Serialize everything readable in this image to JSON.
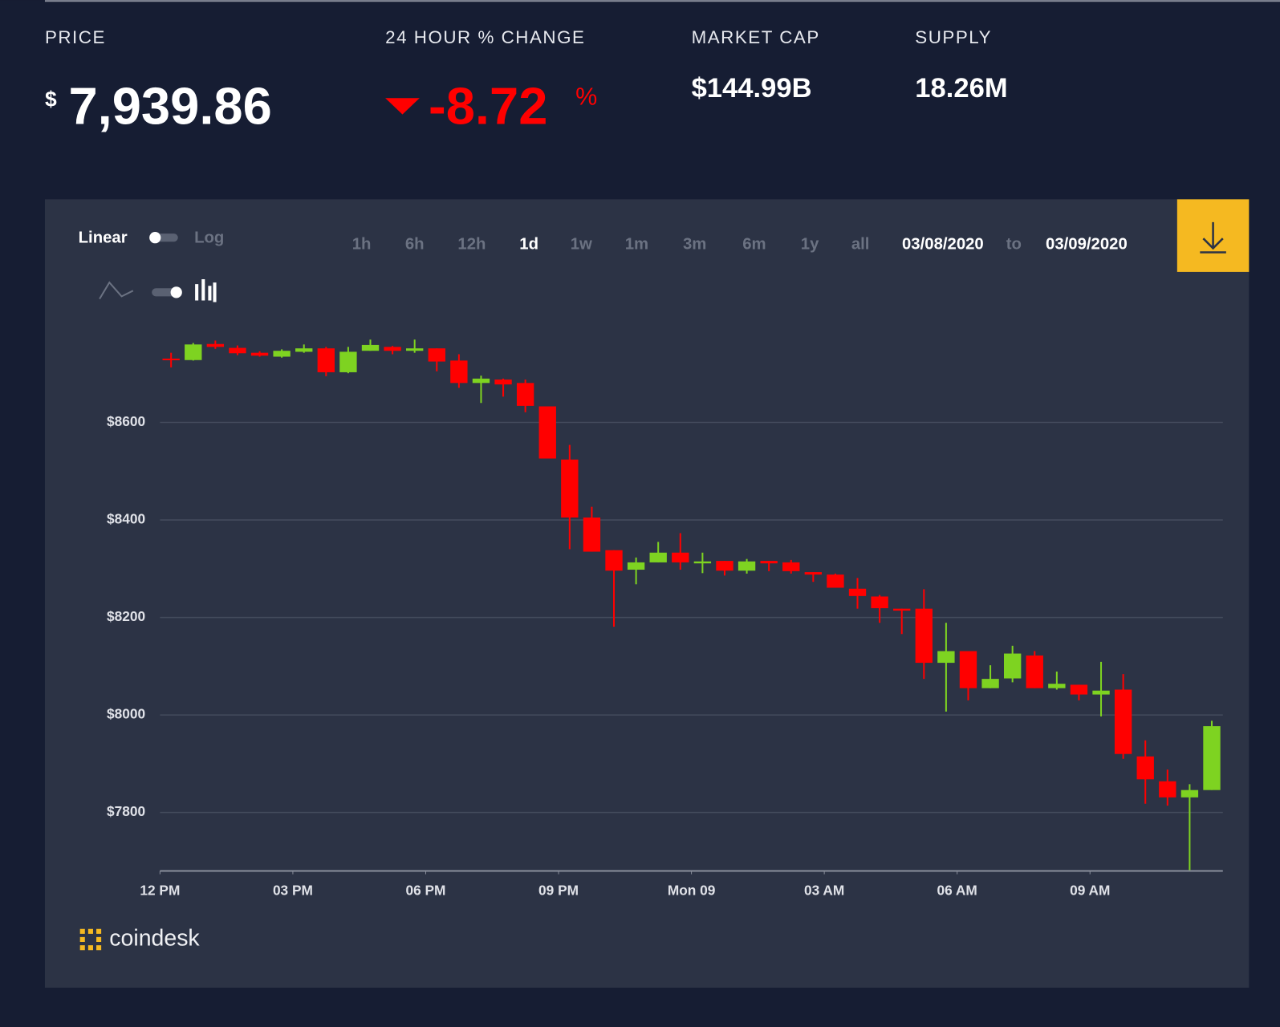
{
  "price": {
    "label": "PRICE",
    "currency": "$",
    "value": "7,939.86"
  },
  "change": {
    "label": "24 HOUR % CHANGE",
    "value": "-8.72",
    "unit": "%"
  },
  "market_cap": {
    "label": "MARKET CAP",
    "value": "$144.99B"
  },
  "supply": {
    "label": "SUPPLY",
    "value": "18.26M"
  },
  "controls": {
    "scale_options": [
      "Linear",
      "Log"
    ],
    "ranges": [
      "1h",
      "6h",
      "12h",
      "1d",
      "1w",
      "1m",
      "3m",
      "6m",
      "1y",
      "all"
    ],
    "selected_range_index": 3,
    "date_from": "03/08/2020",
    "date_sep": "to",
    "date_to": "03/09/2020"
  },
  "brand": "coindesk",
  "chart_data": {
    "type": "candlestick",
    "x": [
      0.25,
      0.75,
      1.25,
      1.75,
      2.25,
      2.75,
      3.25,
      3.75,
      4.25,
      4.75,
      5.25,
      5.75,
      6.25,
      6.75,
      7.25,
      7.75,
      8.25,
      8.75,
      9.25,
      9.75,
      10.25,
      10.75,
      11.25,
      11.75,
      12.25,
      12.75,
      13.25,
      13.75,
      14.25,
      14.75,
      15.25,
      15.75,
      16.25,
      16.75,
      17.25,
      17.75,
      18.25,
      18.75,
      19.25,
      19.75,
      20.25,
      20.75,
      21.25,
      21.75,
      22.25,
      22.75,
      23.25,
      23.75
    ],
    "open": [
      8731,
      8728,
      8761,
      8753,
      8743,
      8735,
      8745,
      8752,
      8703,
      8747,
      8755,
      8747,
      8752,
      8727,
      8681,
      8688,
      8681,
      8633,
      8524,
      8405,
      8338,
      8298,
      8313,
      8333,
      8311,
      8316,
      8296,
      8316,
      8313,
      8293,
      8288,
      8259,
      8243,
      8218,
      8218,
      8107,
      8131,
      8055,
      8075,
      8122,
      8055,
      8062,
      8042,
      8052,
      7915,
      7864,
      7831,
      7846
    ],
    "high": [
      8743,
      8763,
      8768,
      8758,
      8746,
      8750,
      8760,
      8755,
      8755,
      8770,
      8757,
      8770,
      8752,
      8740,
      8696,
      8690,
      8688,
      8633,
      8554,
      8427,
      8338,
      8323,
      8355,
      8373,
      8333,
      8316,
      8320,
      8316,
      8318,
      8293,
      8290,
      8281,
      8246,
      8218,
      8258,
      8189,
      8131,
      8102,
      8142,
      8131,
      8089,
      8062,
      8109,
      8084,
      7948,
      7888,
      7858,
      7988
    ],
    "low": [
      8713,
      8727,
      8751,
      8738,
      8735,
      8733,
      8743,
      8695,
      8701,
      8747,
      8740,
      8743,
      8705,
      8671,
      8640,
      8653,
      8621,
      8526,
      8340,
      8335,
      8181,
      8268,
      8313,
      8298,
      8291,
      8286,
      8290,
      8295,
      8290,
      8273,
      8261,
      8218,
      8189,
      8166,
      8074,
      8007,
      8030,
      8055,
      8067,
      8055,
      8052,
      8030,
      7997,
      7910,
      7818,
      7814,
      7682,
      7846
    ],
    "close": [
      8729,
      8760,
      8755,
      8742,
      8737,
      8747,
      8752,
      8703,
      8745,
      8759,
      8747,
      8752,
      8725,
      8681,
      8690,
      8678,
      8634,
      8526,
      8405,
      8335,
      8296,
      8313,
      8333,
      8313,
      8315,
      8296,
      8315,
      8311,
      8295,
      8288,
      8261,
      8244,
      8219,
      8214,
      8107,
      8131,
      8055,
      8074,
      8126,
      8055,
      8064,
      8042,
      8050,
      7920,
      7868,
      7831,
      7846,
      7977
    ],
    "up_color": "#7ed321",
    "down_color": "#ff0000",
    "xlim": [
      0,
      24
    ],
    "xticks": [
      {
        "value": 0,
        "label": "12 PM"
      },
      {
        "value": 3,
        "label": "03 PM"
      },
      {
        "value": 6,
        "label": "06 PM"
      },
      {
        "value": 9,
        "label": "09 PM"
      },
      {
        "value": 12,
        "label": "Mon 09"
      },
      {
        "value": 15,
        "label": "03 AM"
      },
      {
        "value": 18,
        "label": "06 AM"
      },
      {
        "value": 21,
        "label": "09 AM"
      }
    ],
    "ylim": [
      7680,
      8800
    ],
    "yticks": [
      {
        "value": 7800,
        "label": "$7800"
      },
      {
        "value": 8000,
        "label": "$8000"
      },
      {
        "value": 8200,
        "label": "$8200"
      },
      {
        "value": 8400,
        "label": "$8400"
      },
      {
        "value": 8600,
        "label": "$8600"
      }
    ],
    "grid": true
  }
}
